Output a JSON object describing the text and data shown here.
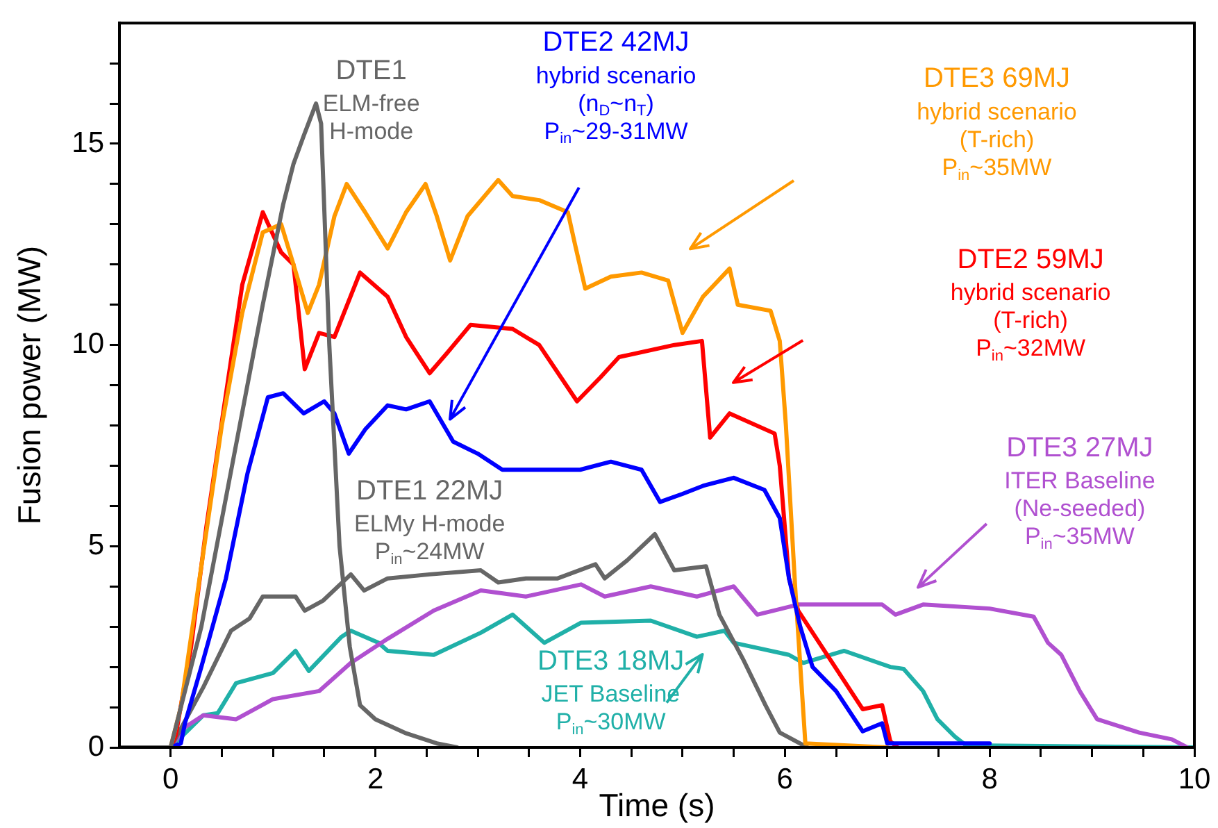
{
  "chart_data": {
    "type": "line",
    "xlabel": "Time (s)",
    "ylabel": "Fusion power (MW)",
    "xlim": [
      -0.5,
      10
    ],
    "ylim": [
      0,
      18
    ],
    "xticks": [
      0,
      {
        "value": 0.5,
        "label": null
      },
      {
        "value": 1,
        "label": null
      },
      {
        "value": 1.5,
        "label": null
      },
      2,
      {
        "value": 2.5,
        "label": null
      },
      {
        "value": 3,
        "label": null
      },
      {
        "value": 3.5,
        "label": null
      },
      4,
      {
        "value": 4.5,
        "label": null
      },
      {
        "value": 5,
        "label": null
      },
      {
        "value": 5.5,
        "label": null
      },
      6,
      {
        "value": 6.5,
        "label": null
      },
      {
        "value": 7,
        "label": null
      },
      {
        "value": 7.5,
        "label": null
      },
      8,
      {
        "value": 8.5,
        "label": null
      },
      {
        "value": 9,
        "label": null
      },
      {
        "value": 9.5,
        "label": null
      },
      10
    ],
    "yticks": [
      0,
      {
        "value": 1,
        "label": null
      },
      {
        "value": 2,
        "label": null
      },
      {
        "value": 3,
        "label": null
      },
      {
        "value": 4,
        "label": null
      },
      5,
      {
        "value": 6,
        "label": null
      },
      {
        "value": 7,
        "label": null
      },
      {
        "value": 8,
        "label": null
      },
      {
        "value": 9,
        "label": null
      },
      10,
      {
        "value": 11,
        "label": null
      },
      {
        "value": 12,
        "label": null
      },
      {
        "value": 13,
        "label": null
      },
      {
        "value": 14,
        "label": null
      },
      15,
      {
        "value": 16,
        "label": null
      },
      {
        "value": 17,
        "label": null
      }
    ],
    "grid": false,
    "legend": false,
    "marker": "none",
    "line_style": "solid",
    "series": [
      {
        "color": "#666666",
        "x": [
          -0.5,
          0,
          0.3,
          0.6,
          0.9,
          1.1,
          1.2,
          1.3,
          1.42,
          1.47,
          1.55,
          1.65,
          1.75,
          1.85,
          2.0,
          2.3,
          2.6,
          2.8
        ],
        "values": [
          0,
          0,
          3,
          7,
          11,
          13.5,
          14.5,
          15.2,
          16,
          15.5,
          10,
          5,
          2.5,
          1.05,
          0.7,
          0.35,
          0.1,
          0
        ]
      },
      {
        "color": "#0000ff",
        "x": [
          -0.5,
          0,
          0.1,
          0.14,
          0.3,
          0.54,
          0.75,
          0.95,
          1.1,
          1.3,
          1.5,
          1.6,
          1.74,
          1.9,
          2.12,
          2.3,
          2.53,
          2.76,
          3.0,
          3.24,
          3.6,
          4.0,
          4.3,
          4.6,
          4.78,
          5.0,
          5.2,
          5.5,
          5.8,
          5.95,
          6.04,
          6.15,
          6.27,
          6.5,
          6.76,
          6.95,
          7.0,
          8.0
        ],
        "values": [
          0,
          0,
          0.1,
          0.6,
          2.0,
          4.2,
          6.8,
          8.7,
          8.8,
          8.3,
          8.6,
          8.3,
          7.3,
          7.9,
          8.5,
          8.4,
          8.6,
          7.6,
          7.3,
          6.9,
          6.9,
          6.9,
          7.1,
          6.9,
          6.1,
          6.3,
          6.5,
          6.7,
          6.4,
          5.7,
          4.2,
          3.0,
          2.0,
          1.4,
          0.4,
          0.6,
          0.1,
          0.1
        ]
      },
      {
        "color": "#ff9900",
        "x": [
          -0.5,
          0,
          0.1,
          0.3,
          0.5,
          0.7,
          0.9,
          1.08,
          1.2,
          1.34,
          1.45,
          1.6,
          1.72,
          1.9,
          2.12,
          2.3,
          2.49,
          2.6,
          2.73,
          2.9,
          3.2,
          3.34,
          3.6,
          3.88,
          3.95,
          4.05,
          4.3,
          4.6,
          4.86,
          5.0,
          5.2,
          5.46,
          5.54,
          5.86,
          5.95,
          6.01,
          6.1,
          6.2,
          7.0
        ],
        "values": [
          0,
          0,
          1,
          4.5,
          8,
          10.8,
          12.8,
          13.0,
          12.0,
          10.8,
          11.5,
          13.2,
          14.0,
          13.3,
          12.4,
          13.3,
          14.0,
          13.2,
          12.1,
          13.2,
          14.1,
          13.7,
          13.6,
          13.3,
          12.5,
          11.4,
          11.7,
          11.8,
          11.6,
          10.3,
          11.2,
          11.9,
          11.0,
          10.85,
          10.1,
          8.0,
          4,
          0.1,
          0
        ]
      },
      {
        "color": "#ff0000",
        "x": [
          -0.5,
          0,
          0.05,
          0.2,
          0.35,
          0.53,
          0.7,
          0.9,
          1.08,
          1.2,
          1.31,
          1.45,
          1.6,
          1.85,
          2.12,
          2.3,
          2.53,
          2.7,
          2.93,
          3.34,
          3.6,
          3.97,
          4.2,
          4.38,
          4.92,
          5.19,
          5.27,
          5.46,
          5.9,
          5.95,
          6.04,
          6.13,
          6.49,
          6.76,
          6.95,
          7.03,
          7.1
        ],
        "values": [
          0,
          0,
          0.3,
          2.5,
          5.5,
          8.6,
          11.5,
          13.3,
          12.3,
          12.0,
          9.4,
          10.3,
          10.2,
          11.8,
          11.2,
          10.2,
          9.3,
          9.8,
          10.5,
          10.4,
          10.0,
          8.6,
          9.2,
          9.7,
          10.0,
          10.1,
          7.7,
          8.3,
          7.8,
          7.0,
          4.2,
          3.4,
          2.0,
          0.95,
          1.05,
          0.15,
          0
        ]
      },
      {
        "color": "#666666",
        "x": [
          -0.5,
          0,
          0.32,
          0.59,
          0.77,
          0.9,
          1.22,
          1.31,
          1.49,
          1.76,
          1.89,
          2.12,
          2.53,
          3.03,
          3.2,
          3.47,
          3.78,
          4.15,
          4.24,
          4.46,
          4.73,
          4.92,
          5.23,
          5.36,
          5.59,
          5.81,
          5.95,
          6.22
        ],
        "values": [
          0,
          0,
          1.5,
          2.9,
          3.2,
          3.75,
          3.75,
          3.4,
          3.65,
          4.3,
          3.9,
          4.2,
          4.3,
          4.4,
          4.1,
          4.2,
          4.2,
          4.55,
          4.2,
          4.65,
          5.3,
          4.4,
          4.5,
          3.3,
          2.2,
          1.05,
          0.37,
          0
        ]
      },
      {
        "color": "#b050d0",
        "x": [
          -0.5,
          0,
          0.14,
          0.32,
          0.64,
          1.0,
          1.45,
          1.76,
          2.12,
          2.57,
          3.03,
          3.47,
          4.01,
          4.24,
          4.69,
          5.14,
          5.5,
          5.73,
          6.13,
          6.95,
          7.08,
          7.35,
          8.0,
          8.43,
          8.57,
          8.7,
          8.88,
          9.05,
          9.46,
          9.78,
          9.93
        ],
        "values": [
          0,
          0,
          0.5,
          0.8,
          0.7,
          1.2,
          1.4,
          2.1,
          2.7,
          3.4,
          3.9,
          3.75,
          4.05,
          3.75,
          4.0,
          3.75,
          4.0,
          3.3,
          3.55,
          3.55,
          3.3,
          3.55,
          3.45,
          3.25,
          2.6,
          2.3,
          1.4,
          0.7,
          0.37,
          0.2,
          0
        ]
      },
      {
        "color": "#20b0a8",
        "x": [
          -0.5,
          0,
          0.32,
          0.46,
          0.64,
          1.0,
          1.22,
          1.35,
          1.67,
          1.76,
          2.03,
          2.12,
          2.57,
          3.03,
          3.34,
          3.65,
          4.01,
          4.69,
          5.14,
          5.41,
          5.5,
          6.04,
          6.18,
          6.58,
          7.03,
          7.16,
          7.35,
          7.49,
          7.66,
          7.77,
          10
        ],
        "values": [
          0,
          0,
          0.8,
          0.85,
          1.6,
          1.85,
          2.4,
          1.9,
          2.75,
          2.9,
          2.6,
          2.4,
          2.3,
          2.85,
          3.3,
          2.6,
          3.1,
          3.15,
          2.75,
          2.9,
          2.6,
          2.3,
          2.1,
          2.4,
          2.0,
          1.95,
          1.4,
          0.7,
          0.27,
          0.05,
          0
        ]
      }
    ],
    "annotations": [
      "DTE1\nELM-free\nH-mode",
      "DTE2 42MJ\nhybrid scenario\n(n$_{D}$~n$_{T}$)\nP$_{in}$~29-31MW",
      "DTE3 69MJ\nhybrid scenario\n(T-rich)\nP$_{in}$~35MW",
      "DTE2 59MJ\nhybrid scenario\n(T-rich)\nP$_{in}$~32MW",
      "DTE1 22MJ\nELMy H-mode\nP$_{in}$~24MW",
      "DTE3 27MJ\nITER Baseline\n(Ne-seeded)\nP$_{in}$~35MW",
      "DTE3 18MJ\nJET Baseline\nP$_{in}$~30MW"
    ]
  }
}
